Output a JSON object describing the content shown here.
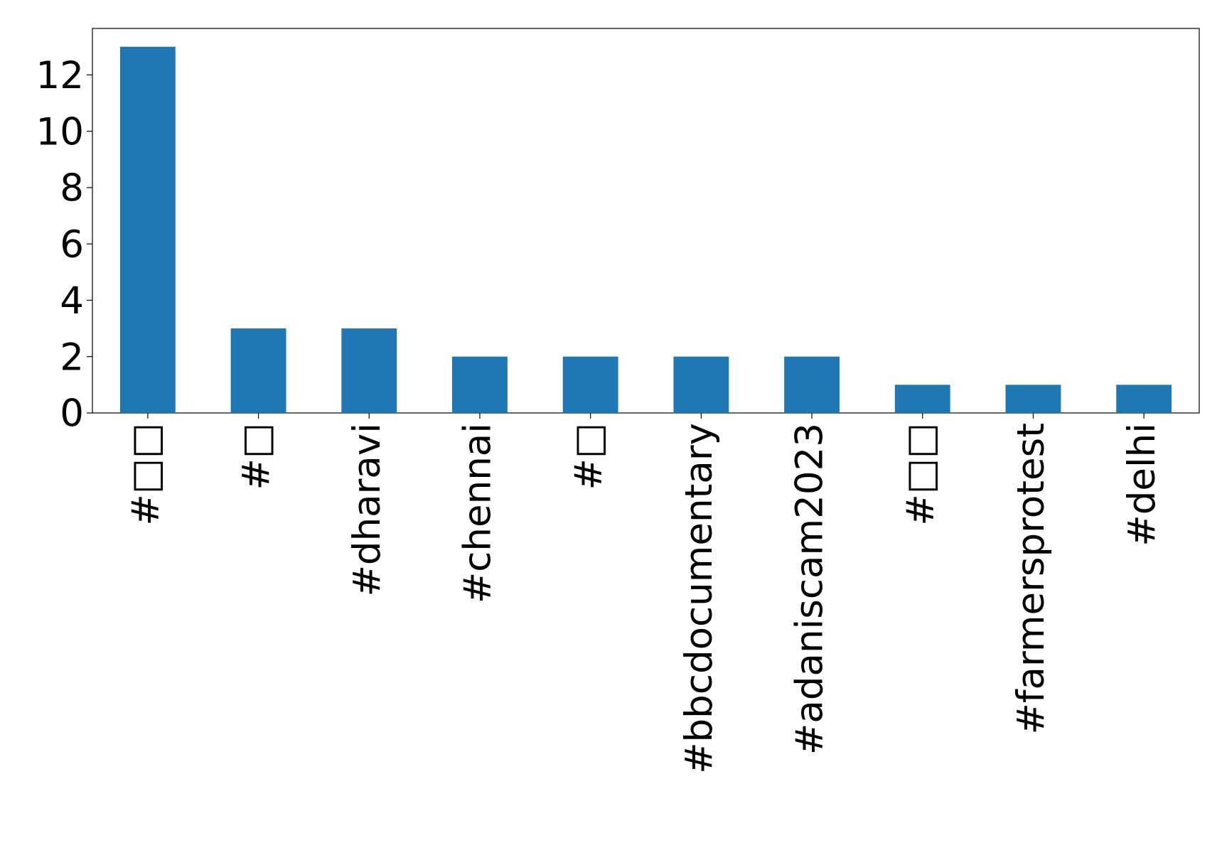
{
  "chart_data": {
    "type": "bar",
    "categories": [
      "#□□",
      "#□",
      "#dharavi",
      "#chennai",
      "#□",
      "#bbcdocumentary",
      "#adaniscam2023",
      "#□□",
      "#farmersprotest",
      "#delhi"
    ],
    "values": [
      13,
      3,
      3,
      2,
      2,
      2,
      2,
      1,
      1,
      1
    ],
    "color": "#1f77b4",
    "ylim": [
      0,
      13.65
    ],
    "yticks": [
      0,
      2,
      4,
      6,
      8,
      10,
      12
    ],
    "grid": false
  }
}
